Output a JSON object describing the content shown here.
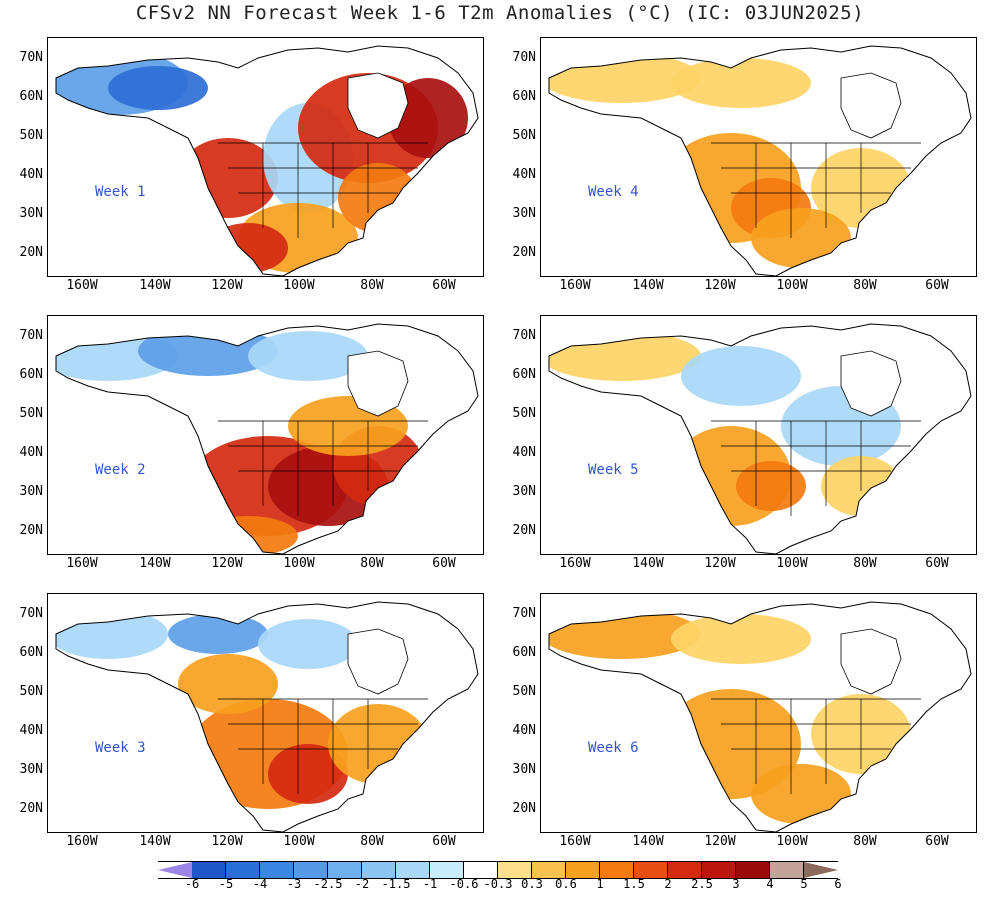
{
  "title": "CFSv2 NN Forecast Week 1-6 T2m Anomalies (°C) (IC: 03JUN2025)",
  "lat_labels": [
    "70N",
    "60N",
    "50N",
    "40N",
    "30N",
    "20N"
  ],
  "lon_labels": [
    "160W",
    "140W",
    "120W",
    "100W",
    "80W",
    "60W"
  ],
  "panels": [
    {
      "label": "Week 1",
      "pattern": "cold-northwest-warm-east"
    },
    {
      "label": "Week 2",
      "pattern": "cold-north-hot-south"
    },
    {
      "label": "Week 3",
      "pattern": "cool-north-warm-south"
    },
    {
      "label": "Week 4",
      "pattern": "warm-widespread"
    },
    {
      "label": "Week 5",
      "pattern": "cool-north-warm-southwest"
    },
    {
      "label": "Week 6",
      "pattern": "warm-widespread-mild"
    }
  ],
  "colorbar": {
    "labels": [
      "-6",
      "-5",
      "-4",
      "-3",
      "-2.5",
      "-2",
      "-1.5",
      "-1",
      "-0.6",
      "-0.3",
      "0.3",
      "0.6",
      "1",
      "1.5",
      "2",
      "2.5",
      "3",
      "4",
      "5",
      "6"
    ],
    "colors": [
      "#9b86e8",
      "#1f56c8",
      "#2a6fd6",
      "#3a86e0",
      "#559ae6",
      "#6fb0ee",
      "#8cc4f2",
      "#a9d8f7",
      "#c8ecfb",
      "#ffffff",
      "#ffe08a",
      "#fbc24e",
      "#f7a11f",
      "#f37b0f",
      "#e84e13",
      "#d42a10",
      "#bb150d",
      "#9a0a0a",
      "#c4a39a",
      "#8a6a5a"
    ]
  }
}
